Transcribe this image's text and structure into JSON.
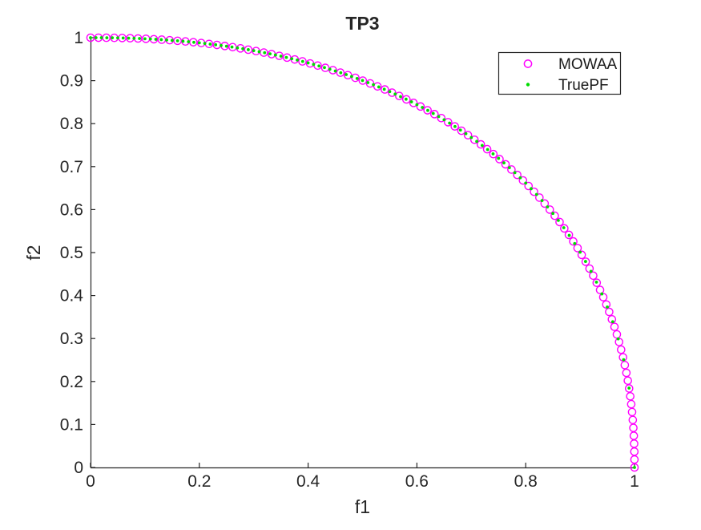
{
  "figure": {
    "background": "#FFFFFF"
  },
  "chart_data": {
    "type": "scatter",
    "title": "TP3",
    "xlabel": "f1",
    "ylabel": "f2",
    "xlim": [
      0,
      1
    ],
    "ylim": [
      0,
      1
    ],
    "x_ticks": [
      0,
      0.2,
      0.4,
      0.6,
      0.8,
      1
    ],
    "x_tick_labels": [
      "0",
      "0.2",
      "0.4",
      "0.6",
      "0.8",
      "1"
    ],
    "y_ticks": [
      0,
      0.1,
      0.2,
      0.3,
      0.4,
      0.5,
      0.6,
      0.7,
      0.8,
      0.9,
      1
    ],
    "y_tick_labels": [
      "0",
      "0.1",
      "0.2",
      "0.3",
      "0.4",
      "0.5",
      "0.6",
      "0.7",
      "0.8",
      "0.9",
      "1"
    ],
    "grid": false,
    "legend_position": "top-right-inside",
    "front": {
      "equation": "f1^p + f2^p = 1 (concave Pareto front from (0,1) to (1,0))",
      "exponent": 2.25
    },
    "series": [
      {
        "name": "MOWAA",
        "marker": "open-circle",
        "color": "#FF00FF",
        "n_points": 100,
        "distribution": "equal-arc-length-along-front"
      },
      {
        "name": "TruePF",
        "marker": "dot",
        "color": "#00DC00",
        "n_points": 101,
        "distribution": "uniform-in-f1"
      }
    ],
    "sample_points": {
      "f1": [
        0,
        0.05,
        0.1,
        0.15,
        0.2,
        0.25,
        0.3,
        0.35,
        0.4,
        0.45,
        0.5,
        0.55,
        0.6,
        0.65,
        0.7,
        0.75,
        0.8,
        0.85,
        0.9,
        0.95,
        1
      ],
      "f2": [
        1,
        0.9995,
        0.9975,
        0.9938,
        0.988,
        0.9801,
        0.9698,
        0.957,
        0.9413,
        0.9226,
        0.9004,
        0.8745,
        0.8442,
        0.809,
        0.7678,
        0.7193,
        0.6616,
        0.5911,
        0.5009,
        0.3734,
        0
      ]
    }
  },
  "legend": {
    "items": [
      {
        "label": "MOWAA",
        "marker": "open-circle",
        "color": "#FF00FF"
      },
      {
        "label": "TruePF",
        "marker": "dot",
        "color": "#00DC00"
      }
    ]
  },
  "style": {
    "axis_color": "#262626",
    "text_color": "#262626",
    "legend_border_color": "#262626",
    "legend_background": "#FFFFFF"
  }
}
